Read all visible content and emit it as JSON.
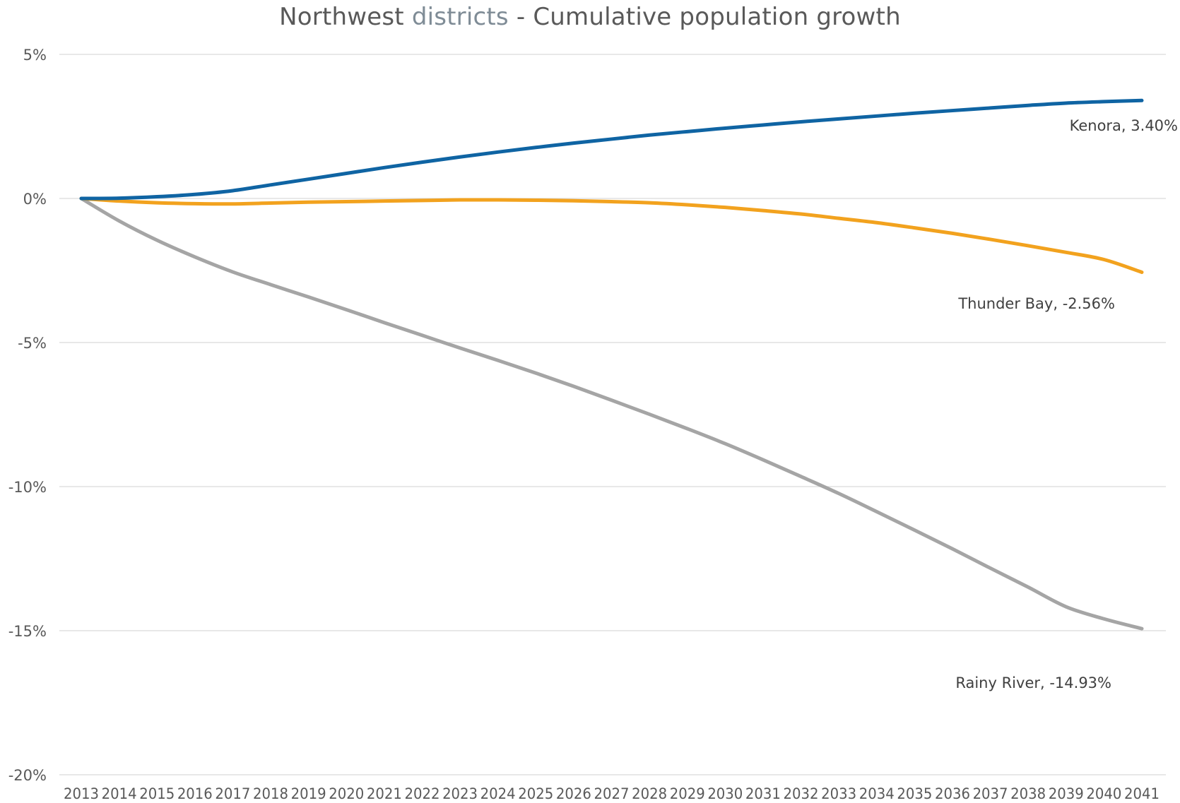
{
  "chart_data": {
    "type": "line",
    "title_parts": [
      "Northwest ",
      "districts",
      " - Cumulative population growth"
    ],
    "xlabel": "",
    "ylabel": "",
    "ylim": [
      -20,
      5
    ],
    "y_ticks": [
      5,
      0,
      -5,
      -10,
      -15,
      -20
    ],
    "y_tick_labels": [
      "5%",
      "0%",
      "-5%",
      "-10%",
      "-15%",
      "-20%"
    ],
    "categories": [
      "2013",
      "2014",
      "2015",
      "2016",
      "2017",
      "2018",
      "2019",
      "2020",
      "2021",
      "2022",
      "2023",
      "2024",
      "2025",
      "2026",
      "2027",
      "2028",
      "2029",
      "2030",
      "2031",
      "2032",
      "2033",
      "2034",
      "2035",
      "2036",
      "2037",
      "2038",
      "2039",
      "2040",
      "2041"
    ],
    "grid": true,
    "legend": "none",
    "series": [
      {
        "name": "Kenora",
        "color": "#0f64a3",
        "end_label": "Kenora, 3.40%",
        "values": [
          0,
          0.01,
          0.06,
          0.14,
          0.27,
          0.47,
          0.67,
          0.87,
          1.07,
          1.26,
          1.44,
          1.61,
          1.77,
          1.92,
          2.06,
          2.2,
          2.32,
          2.44,
          2.55,
          2.66,
          2.76,
          2.86,
          2.96,
          3.05,
          3.14,
          3.23,
          3.31,
          3.36,
          3.4
        ]
      },
      {
        "name": "Thunder Bay",
        "color": "#f2a21e",
        "end_label": "Thunder Bay, -2.56%",
        "values": [
          0,
          -0.09,
          -0.15,
          -0.18,
          -0.19,
          -0.16,
          -0.13,
          -0.11,
          -0.09,
          -0.07,
          -0.05,
          -0.05,
          -0.06,
          -0.08,
          -0.11,
          -0.15,
          -0.22,
          -0.31,
          -0.42,
          -0.54,
          -0.69,
          -0.84,
          -1.02,
          -1.21,
          -1.42,
          -1.64,
          -1.87,
          -2.12,
          -2.56
        ]
      },
      {
        "name": "Rainy River",
        "color": "#a5a5a5",
        "end_label": "Rainy River, -14.93%",
        "values": [
          0,
          -0.78,
          -1.45,
          -2.03,
          -2.55,
          -2.99,
          -3.42,
          -3.86,
          -4.31,
          -4.75,
          -5.19,
          -5.62,
          -6.06,
          -6.52,
          -7.0,
          -7.49,
          -7.99,
          -8.51,
          -9.07,
          -9.65,
          -10.24,
          -10.87,
          -11.51,
          -12.16,
          -12.83,
          -13.49,
          -14.17,
          -14.59,
          -14.93
        ]
      }
    ]
  }
}
